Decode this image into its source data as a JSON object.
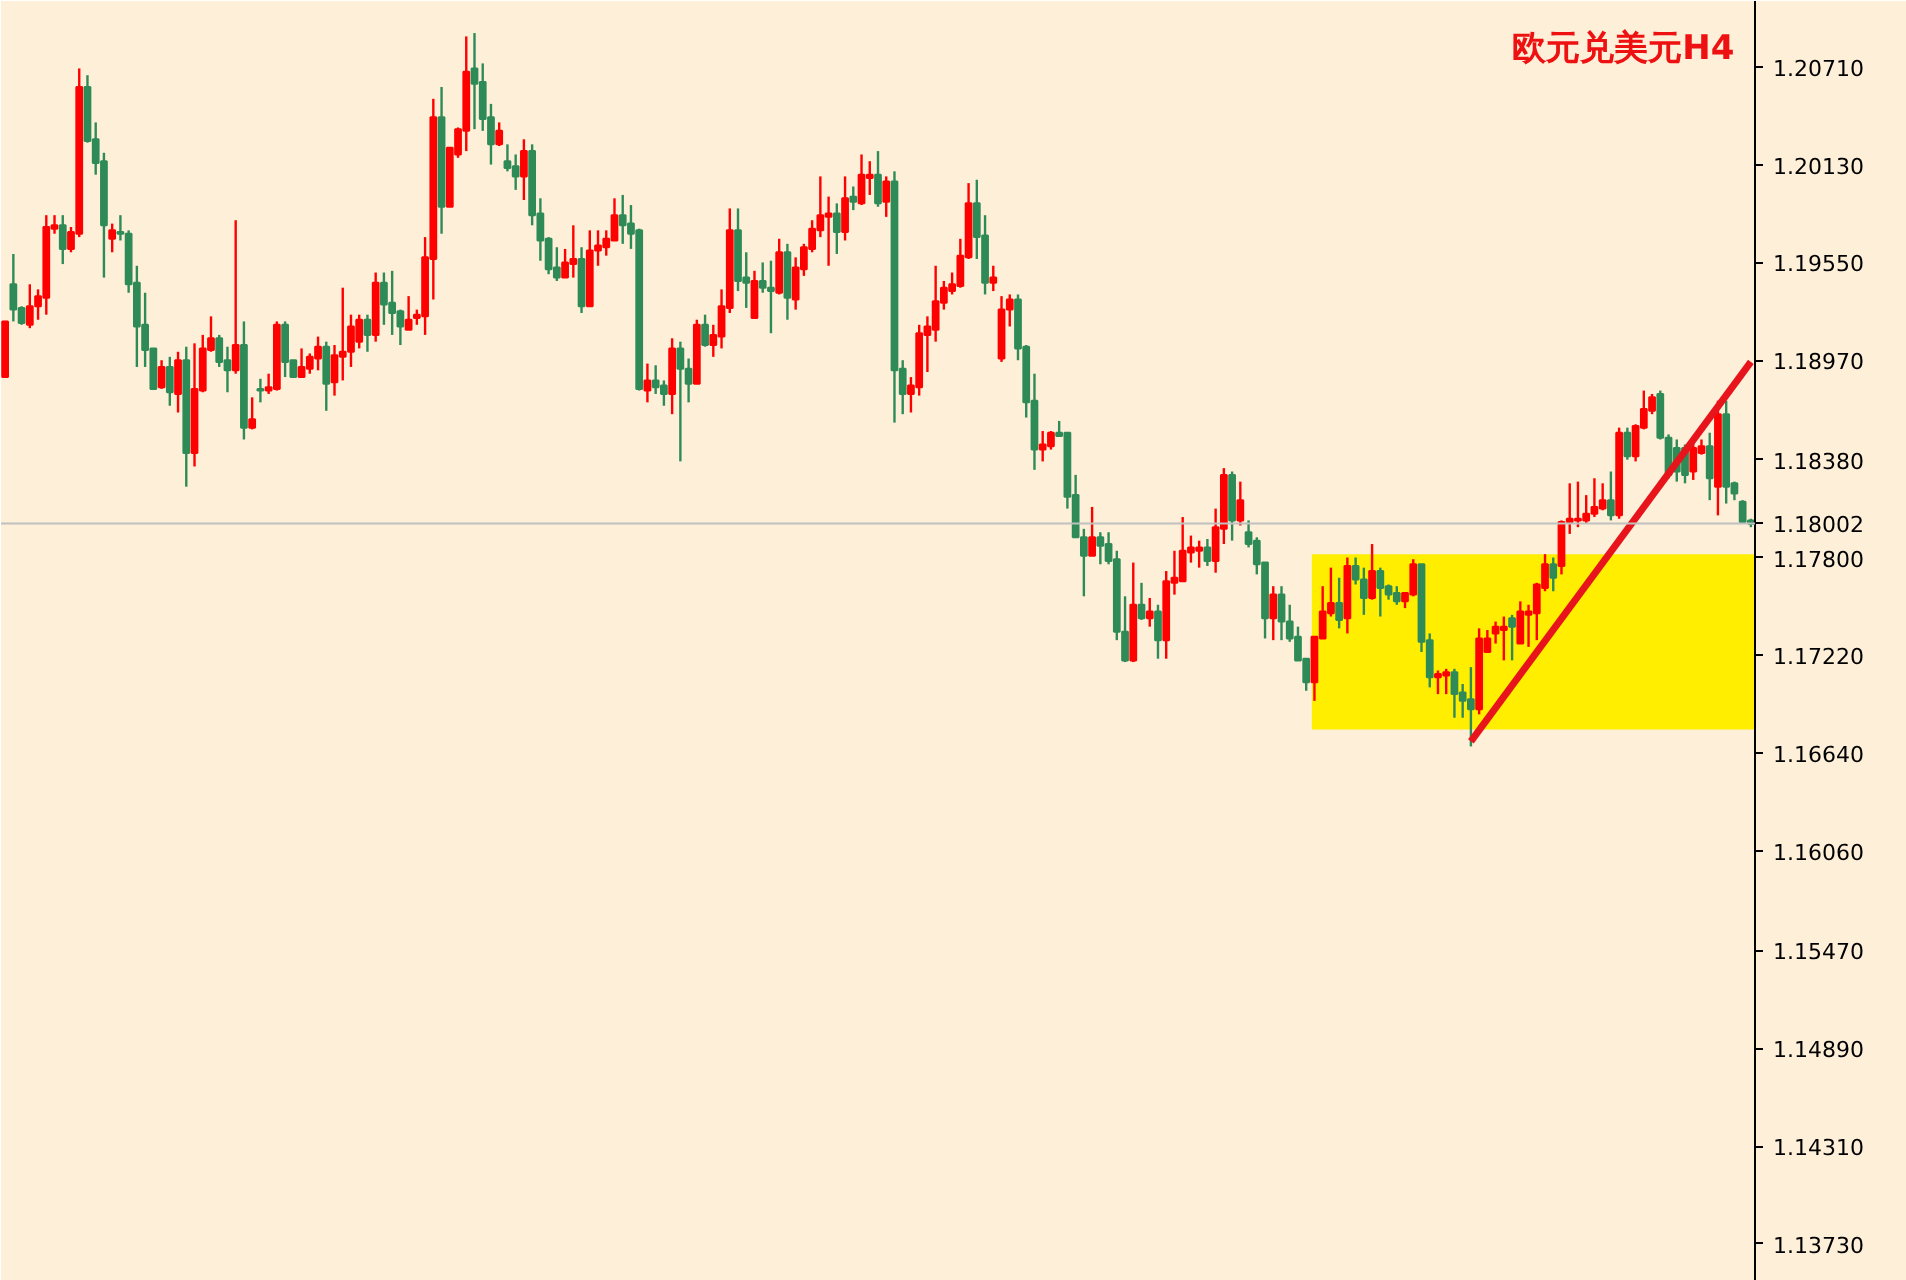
{
  "chart_data": {
    "type": "candlestick",
    "title": "欧元兑美元H4",
    "categories": [
      null,
      null,
      null,
      null,
      null,
      null,
      null,
      null,
      null,
      null,
      null,
      null,
      null,
      null,
      null,
      null,
      null,
      null,
      null,
      null,
      null,
      null,
      null,
      null,
      null,
      null,
      null,
      null,
      null,
      null,
      null,
      null,
      null,
      null,
      null,
      null,
      null,
      null,
      null,
      null,
      null,
      null,
      null,
      null,
      null,
      null,
      null,
      null,
      null,
      null,
      null,
      null,
      null,
      null,
      null,
      null,
      null,
      null,
      null,
      null,
      null,
      null,
      null,
      null,
      null,
      null,
      null,
      null,
      null,
      null,
      null,
      null,
      null,
      null,
      null,
      null,
      null,
      null,
      null,
      null,
      null,
      null,
      null,
      null,
      null,
      null,
      null,
      null,
      null,
      null,
      null,
      null,
      null,
      null,
      null,
      null,
      null,
      null,
      null,
      null,
      null,
      null,
      null,
      null,
      null,
      null,
      null,
      null,
      null,
      null,
      null,
      null,
      null,
      null,
      null,
      null,
      null,
      null,
      null,
      null,
      null,
      null,
      null,
      null,
      null,
      null,
      null,
      null,
      null,
      null,
      null,
      null,
      null,
      null,
      null,
      null,
      null,
      null,
      null,
      null,
      null,
      null,
      null,
      null,
      null,
      null,
      null,
      null,
      null,
      null,
      null,
      null,
      null,
      null,
      null,
      null,
      null,
      null,
      null,
      null,
      null,
      null,
      null,
      null,
      null,
      null,
      null,
      null,
      null,
      null,
      null,
      null,
      null,
      null,
      null,
      null,
      null,
      null,
      null,
      null,
      null,
      null,
      null,
      null,
      null,
      null,
      null,
      null,
      null,
      null,
      null,
      null,
      null,
      null,
      null,
      null,
      null,
      null,
      null,
      null,
      null,
      null,
      null,
      null,
      null,
      null,
      null,
      null,
      null,
      null,
      null,
      null,
      null
    ],
    "ohlc": [
      [
        1.1887,
        1.192,
        1.1887,
        1.192
      ],
      [
        1.1942,
        1.196,
        1.192,
        1.1927
      ],
      [
        1.1928,
        1.1929,
        1.1918,
        1.1919
      ],
      [
        1.1918,
        1.1942,
        1.1916,
        1.1929
      ],
      [
        1.1929,
        1.1939,
        1.1921,
        1.1935
      ],
      [
        1.1934,
        1.1983,
        1.1924,
        1.1976
      ],
      [
        1.1975,
        1.1983,
        1.1972,
        1.1977
      ],
      [
        1.1977,
        1.1983,
        1.1954,
        1.1963
      ],
      [
        1.1963,
        1.1976,
        1.1961,
        1.1973
      ],
      [
        1.1972,
        1.207,
        1.197,
        1.2059
      ],
      [
        1.2059,
        1.2066,
        1.2026,
        1.2027
      ],
      [
        1.2028,
        1.2038,
        1.2007,
        1.2014
      ],
      [
        1.2015,
        1.202,
        1.1946,
        1.1977
      ],
      [
        1.1969,
        1.1978,
        1.1961,
        1.1974
      ],
      [
        1.1973,
        1.1983,
        1.1968,
        1.1972
      ],
      [
        1.1972,
        1.1974,
        1.1937,
        1.1942
      ],
      [
        1.1943,
        1.1953,
        1.1893,
        1.1917
      ],
      [
        1.1918,
        1.1937,
        1.1893,
        1.1903
      ],
      [
        1.1904,
        1.1904,
        1.188,
        1.188
      ],
      [
        1.1881,
        1.1897,
        1.188,
        1.1893
      ],
      [
        1.1893,
        1.1899,
        1.187,
        1.1878
      ],
      [
        1.1877,
        1.1902,
        1.1866,
        1.1897
      ],
      [
        1.1897,
        1.1905,
        1.1822,
        1.1842
      ],
      [
        1.1842,
        1.1907,
        1.1834,
        1.188
      ],
      [
        1.1879,
        1.1912,
        1.1878,
        1.1904
      ],
      [
        1.1903,
        1.1923,
        1.1902,
        1.191
      ],
      [
        1.191,
        1.1912,
        1.1893,
        1.1896
      ],
      [
        1.1897,
        1.1905,
        1.1878,
        1.1891
      ],
      [
        1.1891,
        1.198,
        1.1889,
        1.1906
      ],
      [
        1.1906,
        1.192,
        1.185,
        1.1857
      ],
      [
        1.1857,
        1.1875,
        1.1856,
        1.1862
      ],
      [
        1.188,
        1.1886,
        1.1872,
        1.1879
      ],
      [
        1.1879,
        1.1889,
        1.1877,
        1.1881
      ],
      [
        1.188,
        1.192,
        1.1879,
        1.1918
      ],
      [
        1.1918,
        1.192,
        1.1887,
        1.1896
      ],
      [
        1.1897,
        1.1897,
        1.1887,
        1.1887
      ],
      [
        1.1887,
        1.1904,
        1.1887,
        1.1893
      ],
      [
        1.1892,
        1.1901,
        1.1889,
        1.1899
      ],
      [
        1.1898,
        1.1911,
        1.1891,
        1.1905
      ],
      [
        1.1905,
        1.1908,
        1.1867,
        1.1883
      ],
      [
        1.1884,
        1.1906,
        1.1876,
        1.19
      ],
      [
        1.1899,
        1.194,
        1.1885,
        1.1902
      ],
      [
        1.1902,
        1.1924,
        1.1893,
        1.1917
      ],
      [
        1.1908,
        1.1924,
        1.1904,
        1.1921
      ],
      [
        1.1921,
        1.1924,
        1.1902,
        1.1912
      ],
      [
        1.1912,
        1.1949,
        1.1908,
        1.1943
      ],
      [
        1.1943,
        1.1949,
        1.1918,
        1.193
      ],
      [
        1.1931,
        1.195,
        1.1912,
        1.1925
      ],
      [
        1.1926,
        1.1927,
        1.1906,
        1.1917
      ],
      [
        1.1915,
        1.1935,
        1.1915,
        1.1921
      ],
      [
        1.1922,
        1.1927,
        1.1918,
        1.1924
      ],
      [
        1.1923,
        1.197,
        1.1912,
        1.1958
      ],
      [
        1.1957,
        1.2052,
        1.1933,
        1.2041
      ],
      [
        1.2041,
        1.2059,
        1.1972,
        1.1988
      ],
      [
        1.1988,
        1.2023,
        1.1988,
        1.2023
      ],
      [
        1.2019,
        1.2035,
        1.2017,
        1.2034
      ],
      [
        1.2033,
        1.2089,
        1.2021,
        1.2068
      ],
      [
        1.207,
        1.2091,
        1.2034,
        1.2061
      ],
      [
        1.2062,
        1.2073,
        1.2033,
        1.204
      ],
      [
        1.2041,
        1.2049,
        1.2013,
        1.2025
      ],
      [
        1.2025,
        1.2038,
        1.2024,
        1.2033
      ],
      [
        1.2015,
        1.2025,
        1.2009,
        1.2011
      ],
      [
        1.2012,
        1.2019,
        1.1998,
        1.2006
      ],
      [
        1.2006,
        1.2028,
        1.1992,
        1.2021
      ],
      [
        1.2021,
        1.2025,
        1.1977,
        1.1983
      ],
      [
        1.1984,
        1.1993,
        1.1956,
        1.1968
      ],
      [
        1.1969,
        1.197,
        1.1948,
        1.1951
      ],
      [
        1.1952,
        1.1964,
        1.1944,
        1.1946
      ],
      [
        1.1946,
        1.1963,
        1.1946,
        1.1955
      ],
      [
        1.1954,
        1.1977,
        1.1946,
        1.1957
      ],
      [
        1.1957,
        1.1964,
        1.1925,
        1.1929
      ],
      [
        1.1929,
        1.1974,
        1.1929,
        1.1962
      ],
      [
        1.1962,
        1.1974,
        1.1953,
        1.1965
      ],
      [
        1.1964,
        1.1974,
        1.1959,
        1.1969
      ],
      [
        1.1968,
        1.1993,
        1.1968,
        1.1983
      ],
      [
        1.1983,
        1.1995,
        1.1966,
        1.1977
      ],
      [
        1.1978,
        1.1989,
        1.1963,
        1.1972
      ],
      [
        1.1974,
        1.1975,
        1.1879,
        1.188
      ],
      [
        1.1879,
        1.1895,
        1.1872,
        1.1885
      ],
      [
        1.1885,
        1.1894,
        1.1877,
        1.1881
      ],
      [
        1.1882,
        1.1885,
        1.187,
        1.1877
      ],
      [
        1.1877,
        1.191,
        1.1865,
        1.1904
      ],
      [
        1.1904,
        1.1908,
        1.1837,
        1.1892
      ],
      [
        1.1892,
        1.1898,
        1.1872,
        1.1883
      ],
      [
        1.1883,
        1.1921,
        1.1883,
        1.1918
      ],
      [
        1.1918,
        1.1924,
        1.1905,
        1.1906
      ],
      [
        1.1906,
        1.1918,
        1.1899,
        1.1912
      ],
      [
        1.1911,
        1.1939,
        1.1904,
        1.1929
      ],
      [
        1.1928,
        1.1987,
        1.1925,
        1.1974
      ],
      [
        1.1974,
        1.1987,
        1.1938,
        1.1944
      ],
      [
        1.1946,
        1.1961,
        1.1928,
        1.1943
      ],
      [
        1.1922,
        1.195,
        1.1922,
        1.1944
      ],
      [
        1.1944,
        1.1955,
        1.1937,
        1.194
      ],
      [
        1.194,
        1.1956,
        1.1913,
        1.1938
      ],
      [
        1.1937,
        1.1969,
        1.1936,
        1.1961
      ],
      [
        1.1961,
        1.1966,
        1.1921,
        1.1934
      ],
      [
        1.1933,
        1.1958,
        1.1927,
        1.1952
      ],
      [
        1.1951,
        1.1966,
        1.1947,
        1.1964
      ],
      [
        1.1963,
        1.198,
        1.1961,
        1.1975
      ],
      [
        1.1974,
        1.2006,
        1.197,
        1.1983
      ],
      [
        1.1982,
        1.1994,
        1.1953,
        1.1984
      ],
      [
        1.1984,
        1.199,
        1.196,
        1.1973
      ],
      [
        1.1973,
        1.2006,
        1.1968,
        1.1993
      ],
      [
        1.1994,
        1.2,
        1.1986,
        1.1991
      ],
      [
        1.199,
        1.2019,
        1.1989,
        1.2007
      ],
      [
        1.2005,
        1.2015,
        1.1995,
        1.2007
      ],
      [
        1.2007,
        1.2021,
        1.1988,
        1.199
      ],
      [
        1.1991,
        1.2006,
        1.1982,
        1.2003
      ],
      [
        1.2003,
        1.2009,
        1.186,
        1.1891
      ],
      [
        1.1892,
        1.1897,
        1.1865,
        1.1877
      ],
      [
        1.1877,
        1.1887,
        1.1866,
        1.1882
      ],
      [
        1.1881,
        1.1918,
        1.1876,
        1.1913
      ],
      [
        1.1912,
        1.1923,
        1.189,
        1.1917
      ],
      [
        1.1915,
        1.1953,
        1.1908,
        1.1932
      ],
      [
        1.1931,
        1.1944,
        1.1927,
        1.194
      ],
      [
        1.1938,
        1.1949,
        1.1936,
        1.1942
      ],
      [
        1.1941,
        1.1969,
        1.194,
        1.1959
      ],
      [
        1.1958,
        1.2002,
        1.1957,
        1.199
      ],
      [
        1.199,
        1.2004,
        1.1957,
        1.197
      ],
      [
        1.1971,
        1.1983,
        1.1936,
        1.1943
      ],
      [
        1.1943,
        1.1953,
        1.1938,
        1.1946
      ],
      [
        1.1898,
        1.1935,
        1.1896,
        1.1927
      ],
      [
        1.1927,
        1.1936,
        1.1917,
        1.1933
      ],
      [
        1.1933,
        1.1936,
        1.1897,
        1.1904
      ],
      [
        1.1905,
        1.1906,
        1.1863,
        1.1872
      ],
      [
        1.1873,
        1.1889,
        1.1832,
        1.1844
      ],
      [
        1.1844,
        1.1855,
        1.1837,
        1.1847
      ],
      [
        1.1846,
        1.1855,
        1.1844,
        1.1854
      ],
      [
        1.1854,
        1.1861,
        1.1852,
        1.1852
      ],
      [
        1.1854,
        1.1854,
        1.1809,
        1.1816
      ],
      [
        1.1817,
        1.1829,
        1.1792,
        1.1792
      ],
      [
        1.1792,
        1.1797,
        1.1757,
        1.1781
      ],
      [
        1.1781,
        1.181,
        1.1781,
        1.1792
      ],
      [
        1.1792,
        1.1795,
        1.1776,
        1.1787
      ],
      [
        1.1788,
        1.1795,
        1.1776,
        1.1778
      ],
      [
        1.1779,
        1.1784,
        1.1731,
        1.1736
      ],
      [
        1.1736,
        1.1757,
        1.1718,
        1.1719
      ],
      [
        1.1719,
        1.1777,
        1.1718,
        1.1752
      ],
      [
        1.1752,
        1.1765,
        1.1743,
        1.1744
      ],
      [
        1.1744,
        1.1756,
        1.1739,
        1.1748
      ],
      [
        1.1748,
        1.1752,
        1.172,
        1.1731
      ],
      [
        1.1731,
        1.1772,
        1.172,
        1.1766
      ],
      [
        1.1765,
        1.1784,
        1.1758,
        1.1768
      ],
      [
        1.1766,
        1.1804,
        1.1766,
        1.1784
      ],
      [
        1.1783,
        1.1793,
        1.1777,
        1.1786
      ],
      [
        1.1784,
        1.179,
        1.1774,
        1.1786
      ],
      [
        1.1786,
        1.1791,
        1.1775,
        1.1778
      ],
      [
        1.1778,
        1.1809,
        1.1771,
        1.1798
      ],
      [
        1.1797,
        1.1833,
        1.1788,
        1.1829
      ],
      [
        1.1829,
        1.1831,
        1.179,
        1.1802
      ],
      [
        1.1802,
        1.1825,
        1.1799,
        1.1814
      ],
      [
        1.1795,
        1.1802,
        1.1786,
        1.1788
      ],
      [
        1.179,
        1.1792,
        1.177,
        1.1776
      ],
      [
        1.1777,
        1.1777,
        1.1732,
        1.1744
      ],
      [
        1.1744,
        1.1763,
        1.1731,
        1.1758
      ],
      [
        1.1758,
        1.1763,
        1.1731,
        1.1742
      ],
      [
        1.1742,
        1.1752,
        1.173,
        1.1732
      ],
      [
        1.1733,
        1.1739,
        1.1719,
        1.1719
      ],
      [
        1.172,
        1.172,
        1.1701,
        1.1706
      ],
      [
        1.1706,
        1.1733,
        1.1695,
        1.1733
      ],
      [
        1.1732,
        1.1763,
        1.1732,
        1.1748
      ],
      [
        1.1747,
        1.1774,
        1.1745,
        1.1753
      ],
      [
        1.1753,
        1.1768,
        1.1738,
        1.1743
      ],
      [
        1.1744,
        1.178,
        1.1735,
        1.1775
      ],
      [
        1.1775,
        1.178,
        1.1764,
        1.1767
      ],
      [
        1.1767,
        1.1774,
        1.1746,
        1.1756
      ],
      [
        1.1756,
        1.1788,
        1.1755,
        1.1772
      ],
      [
        1.1772,
        1.1774,
        1.1745,
        1.1762
      ],
      [
        1.1763,
        1.1764,
        1.1755,
        1.1758
      ],
      [
        1.1759,
        1.1763,
        1.1752,
        1.1754
      ],
      [
        1.1754,
        1.1759,
        1.175,
        1.1759
      ],
      [
        1.1758,
        1.1779,
        1.1757,
        1.1776
      ],
      [
        1.1776,
        1.1776,
        1.1724,
        1.173
      ],
      [
        1.1731,
        1.1735,
        1.1703,
        1.1709
      ],
      [
        1.1709,
        1.1713,
        1.1699,
        1.1711
      ],
      [
        1.171,
        1.1714,
        1.1699,
        1.1712
      ],
      [
        1.1712,
        1.1714,
        1.1685,
        1.1699
      ],
      [
        1.17,
        1.1705,
        1.1685,
        1.1695
      ],
      [
        1.1696,
        1.1715,
        1.1668,
        1.169
      ],
      [
        1.169,
        1.1738,
        1.1687,
        1.1732
      ],
      [
        1.1724,
        1.1737,
        1.1724,
        1.1732
      ],
      [
        1.1735,
        1.1742,
        1.1729,
        1.1739
      ],
      [
        1.1737,
        1.1745,
        1.1719,
        1.1739
      ],
      [
        1.1744,
        1.1746,
        1.1719,
        1.1739
      ],
      [
        1.1729,
        1.1754,
        1.1729,
        1.1748
      ],
      [
        1.1746,
        1.1752,
        1.1727,
        1.1748
      ],
      [
        1.1747,
        1.1765,
        1.1731,
        1.1764
      ],
      [
        1.1762,
        1.1782,
        1.176,
        1.1776
      ],
      [
        1.1776,
        1.178,
        1.176,
        1.1768
      ],
      [
        1.1775,
        1.1802,
        1.177,
        1.1801
      ],
      [
        1.1801,
        1.1824,
        1.1794,
        1.1803
      ],
      [
        1.1802,
        1.1825,
        1.1798,
        1.1803
      ],
      [
        1.1802,
        1.1817,
        1.18,
        1.1806
      ],
      [
        1.1806,
        1.1827,
        1.1804,
        1.181
      ],
      [
        1.1809,
        1.1824,
        1.1808,
        1.1814
      ],
      [
        1.1814,
        1.1831,
        1.1802,
        1.1805
      ],
      [
        1.1805,
        1.1857,
        1.1803,
        1.1854
      ],
      [
        1.1854,
        1.1857,
        1.1838,
        1.184
      ],
      [
        1.184,
        1.1859,
        1.1837,
        1.1858
      ],
      [
        1.1857,
        1.1879,
        1.1856,
        1.1868
      ],
      [
        1.1867,
        1.1877,
        1.1865,
        1.1875
      ],
      [
        1.1877,
        1.1879,
        1.185,
        1.1851
      ],
      [
        1.1851,
        1.1853,
        1.1827,
        1.1829
      ],
      [
        1.1845,
        1.185,
        1.1825,
        1.1831
      ],
      [
        1.1845,
        1.1847,
        1.1824,
        1.1829
      ],
      [
        1.1831,
        1.1849,
        1.1826,
        1.1845
      ],
      [
        1.1842,
        1.185,
        1.1841,
        1.1846
      ],
      [
        1.1846,
        1.1854,
        1.1814,
        1.1827
      ],
      [
        1.1822,
        1.1873,
        1.1805,
        1.1865
      ],
      [
        1.1865,
        1.1873,
        1.1812,
        1.1822
      ],
      [
        1.1824,
        1.1825,
        1.1814,
        1.1818
      ],
      [
        1.1813,
        1.1814,
        1.18,
        1.1801
      ],
      [
        1.1802,
        1.1803,
        1.1798,
        1.18
      ]
    ],
    "colors": [
      "#ff0000",
      "#2e8b57",
      "#2e8b57",
      "#ff0000",
      "#ff0000",
      "#ff0000",
      "#ff0000",
      "#2e8b57",
      "#ff0000",
      "#ff0000",
      "#2e8b57",
      "#2e8b57",
      "#2e8b57",
      "#ff0000",
      "#2e8b57",
      "#2e8b57",
      "#2e8b57",
      "#2e8b57",
      "#2e8b57",
      "#ff0000",
      "#2e8b57",
      "#ff0000",
      "#2e8b57",
      "#ff0000",
      "#ff0000",
      "#ff0000",
      "#2e8b57",
      "#2e8b57",
      "#ff0000",
      "#2e8b57",
      "#ff0000",
      "#2e8b57",
      "#ff0000",
      "#ff0000",
      "#2e8b57",
      "#2e8b57",
      "#ff0000",
      "#ff0000",
      "#ff0000",
      "#2e8b57",
      "#ff0000",
      "#ff0000",
      "#ff0000",
      "#ff0000",
      "#2e8b57",
      "#ff0000",
      "#2e8b57",
      "#2e8b57",
      "#2e8b57",
      "#ff0000",
      "#ff0000",
      "#ff0000",
      "#ff0000",
      "#2e8b57",
      "#ff0000",
      "#ff0000",
      "#ff0000",
      "#2e8b57",
      "#2e8b57",
      "#2e8b57",
      "#ff0000",
      "#2e8b57",
      "#2e8b57",
      "#ff0000",
      "#2e8b57",
      "#2e8b57",
      "#2e8b57",
      "#2e8b57",
      "#ff0000",
      "#ff0000",
      "#2e8b57",
      "#ff0000",
      "#ff0000",
      "#ff0000",
      "#ff0000",
      "#2e8b57",
      "#2e8b57",
      "#2e8b57",
      "#ff0000",
      "#2e8b57",
      "#2e8b57",
      "#ff0000",
      "#2e8b57",
      "#2e8b57",
      "#ff0000",
      "#2e8b57",
      "#ff0000",
      "#ff0000",
      "#ff0000",
      "#2e8b57",
      "#2e8b57",
      "#ff0000",
      "#2e8b57",
      "#2e8b57",
      "#ff0000",
      "#2e8b57",
      "#ff0000",
      "#ff0000",
      "#ff0000",
      "#ff0000",
      "#ff0000",
      "#2e8b57",
      "#ff0000",
      "#2e8b57",
      "#ff0000",
      "#ff0000",
      "#2e8b57",
      "#ff0000",
      "#2e8b57",
      "#2e8b57",
      "#ff0000",
      "#ff0000",
      "#ff0000",
      "#ff0000",
      "#ff0000",
      "#ff0000",
      "#ff0000",
      "#ff0000",
      "#2e8b57",
      "#2e8b57",
      "#ff0000",
      "#ff0000",
      "#ff0000",
      "#2e8b57",
      "#2e8b57",
      "#2e8b57",
      "#ff0000",
      "#ff0000",
      "#2e8b57",
      "#2e8b57",
      "#2e8b57",
      "#2e8b57",
      "#ff0000",
      "#2e8b57",
      "#2e8b57",
      "#2e8b57",
      "#2e8b57",
      "#ff0000",
      "#2e8b57",
      "#ff0000",
      "#2e8b57",
      "#ff0000",
      "#ff0000",
      "#ff0000",
      "#ff0000",
      "#ff0000",
      "#2e8b57",
      "#ff0000",
      "#ff0000",
      "#2e8b57",
      "#ff0000",
      "#2e8b57",
      "#2e8b57",
      "#2e8b57",
      "#ff0000",
      "#2e8b57",
      "#2e8b57",
      "#2e8b57",
      "#2e8b57",
      "#ff0000",
      "#ff0000",
      "#ff0000",
      "#2e8b57",
      "#ff0000",
      "#2e8b57",
      "#2e8b57",
      "#ff0000",
      "#2e8b57",
      "#2e8b57",
      "#2e8b57",
      "#ff0000",
      "#ff0000",
      "#2e8b57",
      "#2e8b57",
      "#ff0000",
      "#ff0000",
      "#2e8b57",
      "#2e8b57",
      "#2e8b57",
      "#ff0000",
      "#ff0000",
      "#ff0000",
      "#ff0000",
      "#2e8b57",
      "#ff0000",
      "#ff0000",
      "#ff0000",
      "#ff0000",
      "#2e8b57",
      "#ff0000",
      "#ff0000",
      "#ff0000",
      "#ff0000",
      "#ff0000",
      "#ff0000",
      "#2e8b57",
      "#ff0000",
      "#2e8b57",
      "#ff0000",
      "#ff0000",
      "#ff0000",
      "#2e8b57",
      "#2e8b57",
      "#2e8b57",
      "#2e8b57",
      "#ff0000",
      "#ff0000",
      "#2e8b57",
      "#ff0000",
      "#2e8b57",
      "#2e8b57",
      "#2e8b57",
      "#2e8b57"
    ],
    "series": [
      {
        "type": "line",
        "color": "#e8141c",
        "values": [
          null,
          null,
          null,
          null,
          null,
          null,
          null,
          null,
          null,
          null,
          null,
          null,
          null,
          null,
          null,
          null,
          null,
          null,
          null,
          null,
          null,
          null,
          null,
          null,
          null,
          null,
          null,
          null,
          null,
          null,
          null,
          null,
          null,
          null,
          null,
          null,
          null,
          null,
          null,
          null,
          null,
          null,
          null,
          null,
          null,
          null,
          null,
          null,
          null,
          null,
          null,
          null,
          null,
          null,
          null,
          null,
          null,
          null,
          null,
          null,
          null,
          null,
          null,
          null,
          null,
          null,
          null,
          null,
          null,
          null,
          null,
          null,
          null,
          null,
          null,
          null,
          null,
          null,
          null,
          null,
          null,
          null,
          null,
          null,
          null,
          null,
          null,
          null,
          null,
          null,
          null,
          null,
          null,
          null,
          null,
          null,
          null,
          null,
          null,
          null,
          null,
          null,
          null,
          null,
          null,
          null,
          null,
          null,
          null,
          null,
          null,
          null,
          null,
          null,
          null,
          null,
          null,
          null,
          null,
          null,
          null,
          null,
          null,
          null,
          null,
          null,
          null,
          null,
          null,
          null,
          null,
          null,
          null,
          null,
          null,
          null,
          null,
          null,
          null,
          null,
          null,
          null,
          null,
          null,
          null,
          null,
          null,
          null,
          null,
          null,
          null,
          null,
          null,
          null,
          null,
          null,
          null,
          null,
          null,
          null,
          null,
          null,
          null,
          null,
          null,
          null,
          null,
          null,
          null,
          null,
          null,
          null,
          null,
          null,
          null,
          null,
          null,
          null,
          1.1671,
          null,
          null,
          null,
          null,
          null,
          null,
          null,
          null,
          null,
          null,
          null,
          null,
          null,
          null,
          null,
          null,
          null,
          null,
          null,
          null,
          null,
          null,
          null,
          null,
          null,
          null,
          null,
          null,
          null,
          null,
          null,
          null,
          null,
          1.1896
        ]
      }
    ],
    "ylim": [
      1.1351,
      1.211
    ],
    "yticks": [
      {
        "value": 1.2071,
        "label": "1.20710"
      },
      {
        "value": 1.2013,
        "label": "1.20130"
      },
      {
        "value": 1.1955,
        "label": "1.19550"
      },
      {
        "value": 1.1897,
        "label": "1.18970"
      },
      {
        "value": 1.1838,
        "label": "1.18380"
      },
      {
        "value": 1.178,
        "label": "1.17800"
      },
      {
        "value": 1.1722,
        "label": "1.17220"
      },
      {
        "value": 1.1664,
        "label": "1.16640"
      },
      {
        "value": 1.1606,
        "label": "1.16060"
      },
      {
        "value": 1.1547,
        "label": "1.15470"
      },
      {
        "value": 1.1489,
        "label": "1.14890"
      },
      {
        "value": 1.1431,
        "label": "1.14310"
      },
      {
        "value": 1.1373,
        "label": "1.13730"
      }
    ],
    "ref_lines": [
      {
        "axis": "y",
        "value": 1.18002,
        "label": "1.18002",
        "color": "#c0c0c0"
      }
    ],
    "bands": [
      {
        "axis": "y",
        "from": 1.1678,
        "to": 1.1782,
        "color": "#ffee00"
      }
    ]
  }
}
